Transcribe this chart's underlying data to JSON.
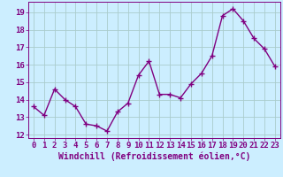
{
  "x": [
    0,
    1,
    2,
    3,
    4,
    5,
    6,
    7,
    8,
    9,
    10,
    11,
    12,
    13,
    14,
    15,
    16,
    17,
    18,
    19,
    20,
    21,
    22,
    23
  ],
  "y": [
    13.6,
    13.1,
    14.6,
    14.0,
    13.6,
    12.6,
    12.5,
    12.2,
    13.3,
    13.8,
    15.4,
    16.2,
    14.3,
    14.3,
    14.1,
    14.9,
    15.5,
    16.5,
    18.8,
    19.2,
    18.5,
    17.5,
    16.9,
    15.9
  ],
  "line_color": "#800080",
  "marker": "+",
  "marker_size": 4,
  "linewidth": 1.0,
  "bg_color": "#cceeff",
  "grid_color": "#aacccc",
  "tick_color": "#800080",
  "label_color": "#800080",
  "xlabel": "Windchill (Refroidissement éolien,°C)",
  "ylabel": "",
  "ylim": [
    11.8,
    19.6
  ],
  "xlim": [
    -0.5,
    23.5
  ],
  "yticks": [
    12,
    13,
    14,
    15,
    16,
    17,
    18,
    19
  ],
  "xticks": [
    0,
    1,
    2,
    3,
    4,
    5,
    6,
    7,
    8,
    9,
    10,
    11,
    12,
    13,
    14,
    15,
    16,
    17,
    18,
    19,
    20,
    21,
    22,
    23
  ],
  "tick_fontsize": 6.5,
  "label_fontsize": 7.0
}
